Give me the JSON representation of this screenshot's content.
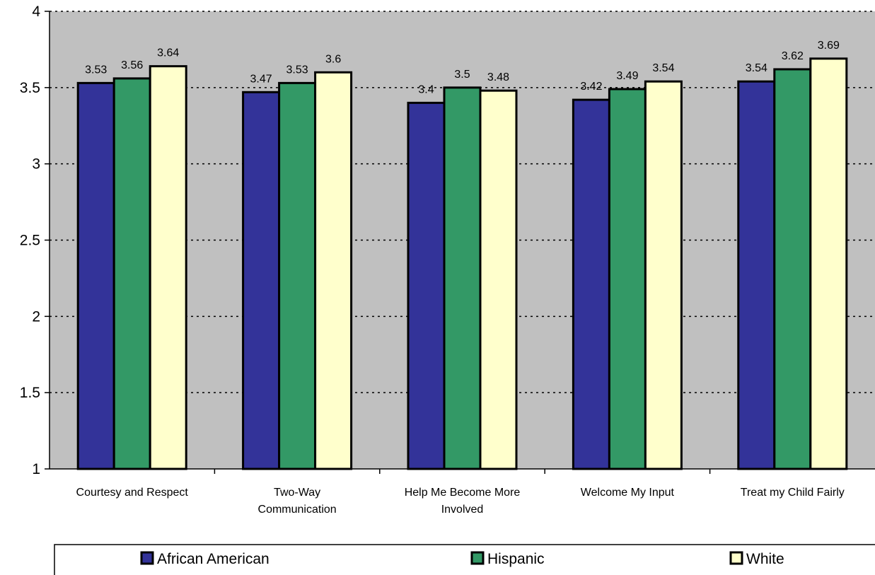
{
  "chart_data": {
    "type": "bar",
    "categories": [
      [
        "Courtesy and Respect"
      ],
      [
        "Two-Way",
        "Communication"
      ],
      [
        "Help Me Become More",
        "Involved"
      ],
      [
        "Welcome My Input"
      ],
      [
        "Treat my Child Fairly"
      ]
    ],
    "series": [
      {
        "name": "African American",
        "color": "#333399",
        "values": [
          3.53,
          3.47,
          3.4,
          3.42,
          3.54
        ],
        "labels": [
          "3.53",
          "3.47",
          "3.4",
          "3.42",
          "3.54"
        ]
      },
      {
        "name": "Hispanic",
        "color": "#339966",
        "values": [
          3.56,
          3.53,
          3.5,
          3.49,
          3.62
        ],
        "labels": [
          "3.56",
          "3.53",
          "3.5",
          "3.49",
          "3.62"
        ]
      },
      {
        "name": "White",
        "color": "#FFFFCC",
        "values": [
          3.64,
          3.6,
          3.48,
          3.54,
          3.69
        ],
        "labels": [
          "3.64",
          "3.6",
          "3.48",
          "3.54",
          "3.69"
        ]
      }
    ],
    "ylim": [
      1,
      4
    ],
    "yticks": [
      "1",
      "1.5",
      "2",
      "2.5",
      "3",
      "3.5",
      "4"
    ],
    "grid": true,
    "plot_background": "#C0C0C0",
    "legend_position": "bottom"
  }
}
